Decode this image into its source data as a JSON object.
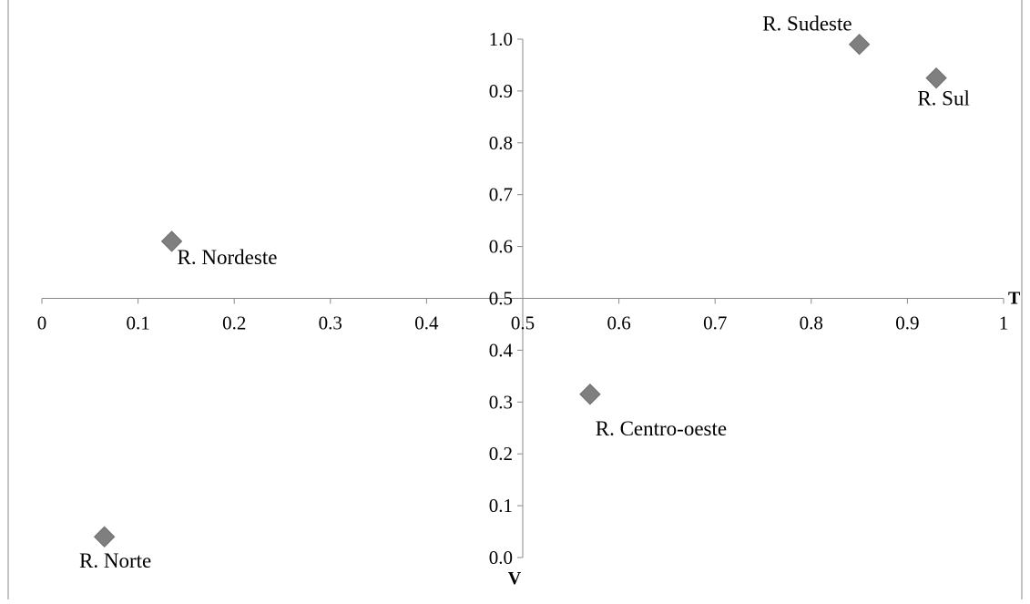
{
  "chart_data": {
    "type": "scatter",
    "x_axis_name": "T",
    "y_axis_name": "V",
    "xlim": [
      0,
      1
    ],
    "ylim": [
      0,
      1
    ],
    "x_ticks": [
      "0",
      "0.1",
      "0.2",
      "0.3",
      "0.4",
      "0.5",
      "0.6",
      "0.7",
      "0.8",
      "0.9",
      "1"
    ],
    "y_ticks": [
      "0.0",
      "0.1",
      "0.2",
      "0.3",
      "0.4",
      "0.5",
      "0.6",
      "0.7",
      "0.8",
      "0.9",
      "1.0"
    ],
    "axes_cross_at": {
      "x": 0.5,
      "y": 0.5
    },
    "marker": "diamond",
    "marker_color": "#7f7f7f",
    "grid": false,
    "points": [
      {
        "label": "R. Sudeste",
        "x": 0.85,
        "y": 0.99
      },
      {
        "label": "R. Sul",
        "x": 0.93,
        "y": 0.925
      },
      {
        "label": "R. Nordeste",
        "x": 0.135,
        "y": 0.61
      },
      {
        "label": "R. Centro-oeste",
        "x": 0.57,
        "y": 0.315
      },
      {
        "label": "R. Norte",
        "x": 0.065,
        "y": 0.04
      }
    ]
  }
}
